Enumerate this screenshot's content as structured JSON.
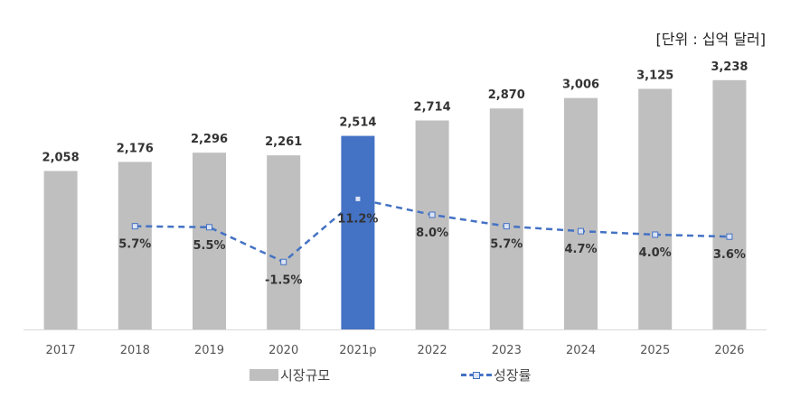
{
  "unit_label": "[단위 : 십억 달러]",
  "legend": {
    "bar_label": "시장규모",
    "line_label": "성장률"
  },
  "colors": {
    "bar": "#bfbfbf",
    "highlight": "#4472c4",
    "line": "#4472c4",
    "axis": "#d9d9d9"
  },
  "chart_data": {
    "type": "bar+line",
    "categories": [
      "2017",
      "2018",
      "2019",
      "2020",
      "2021p",
      "2022",
      "2023",
      "2024",
      "2025",
      "2026"
    ],
    "highlight_category": "2021p",
    "series": [
      {
        "name": "시장규모",
        "type": "bar",
        "values": [
          2058,
          2176,
          2296,
          2261,
          2514,
          2714,
          2870,
          3006,
          3125,
          3238
        ],
        "labels": [
          "2,058",
          "2,176",
          "2,296",
          "2,261",
          "2,514",
          "2,714",
          "2,870",
          "3,006",
          "3,125",
          "3,238"
        ]
      },
      {
        "name": "성장률",
        "type": "line",
        "values": [
          null,
          5.7,
          5.5,
          -1.5,
          11.2,
          8.0,
          5.7,
          4.7,
          4.0,
          3.6
        ],
        "labels": [
          "",
          "5.7%",
          "5.5%",
          "-1.5%",
          "11.2%",
          "8.0%",
          "5.7%",
          "4.7%",
          "4.0%",
          "3.6%"
        ]
      }
    ],
    "ylim": [
      0,
      3400
    ],
    "ylim_rate": [
      -28,
      42
    ],
    "title": "",
    "xlabel": "",
    "ylabel": ""
  }
}
